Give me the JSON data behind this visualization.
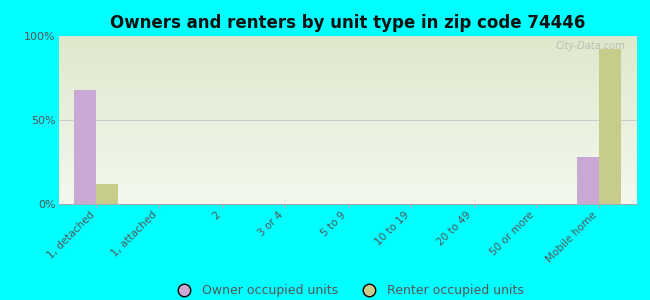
{
  "title": "Owners and renters by unit type in zip code 74446",
  "categories": [
    "1, detached",
    "1, attached",
    "2",
    "3 or 4",
    "5 to 9",
    "10 to 19",
    "20 to 49",
    "50 or more",
    "Mobile home"
  ],
  "owner_values": [
    68,
    0,
    0,
    0,
    0,
    0,
    0,
    0,
    28
  ],
  "renter_values": [
    12,
    0,
    0,
    0,
    0,
    0,
    0,
    0,
    92
  ],
  "owner_color": "#c9a8d4",
  "renter_color": "#c8cc8a",
  "background_color": "#00ffff",
  "plot_bg_color_top": "#dde8cc",
  "plot_bg_color_bottom": "#f4f8ee",
  "ylim": [
    0,
    100
  ],
  "yticks": [
    0,
    50,
    100
  ],
  "ytick_labels": [
    "0%",
    "50%",
    "100%"
  ],
  "bar_width": 0.35,
  "legend_owner": "Owner occupied units",
  "legend_renter": "Renter occupied units",
  "watermark": "City-Data.com"
}
